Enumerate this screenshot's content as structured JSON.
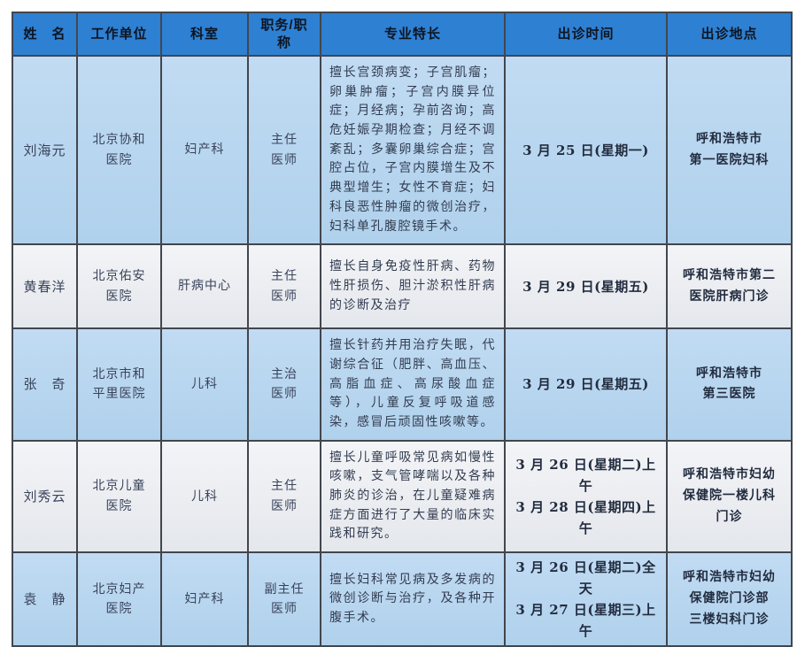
{
  "colors": {
    "header_bg": "#2e80d2",
    "header_text": "#0d1522",
    "body_text": "#39435a",
    "strong_text": "#222c3f",
    "border_color": "#42464d",
    "row_blue_top": "#c1dbf3",
    "row_blue_bottom": "#b0d1ec",
    "row_light_top": "#f3f4f7",
    "row_light_bottom": "#e4e7ec",
    "page_bg": "#ffffff"
  },
  "table": {
    "headers": {
      "name": "姓　名",
      "unit": "工作单位",
      "dept": "科室",
      "title": "职务/职\n称",
      "specialty": "专业特长",
      "time": "出诊时间",
      "location": "出诊地点"
    },
    "rows": [
      {
        "name": "刘海元",
        "unit": "北京协和\n医院",
        "dept": "妇产科",
        "title": "主任\n医师",
        "specialty": "擅长宫颈病变；子宫肌瘤；卵巢肿瘤；子宫内膜异位症；月经病；孕前咨询；高危妊娠孕期检查；月经不调紊乱；多囊卵巢综合症；宫腔占位，子宫内膜增生及不典型增生；女性不育症；妇科良恶性肿瘤的微创治疗，妇科单孔腹腔镜手术。",
        "time": "3 月 25 日(星期一)",
        "location": "呼和浩特市\n第一医院妇科"
      },
      {
        "name": "黄春洋",
        "unit": "北京佑安\n医院",
        "dept": "肝病中心",
        "title": "主任\n医师",
        "specialty": "擅长自身免疫性肝病、药物性肝损伤、胆汁淤积性肝病的诊断及治疗",
        "time": "3 月 29 日(星期五)",
        "location": "呼和浩特市第二\n医院肝病门诊"
      },
      {
        "name": "张　奇",
        "unit": "北京市和\n平里医院",
        "dept": "儿科",
        "title": "主治\n医师",
        "specialty": "擅长针药并用治疗失眠，代谢综合征（肥胖、高血压、高脂血症、高尿酸血症等），儿童反复呼吸道感染，感冒后顽固性咳嗽等。",
        "time": "3 月 29 日(星期五)",
        "location": "呼和浩特市\n第三医院"
      },
      {
        "name": "刘秀云",
        "unit": "北京儿童\n医院",
        "dept": "儿科",
        "title": "主任\n医师",
        "specialty": "擅长儿童呼吸常见病如慢性咳嗽，支气管哮喘以及各种肺炎的诊治，在儿童疑难病症方面进行了大量的临床实践和研究。",
        "time": "3 月 26 日(星期二)上午\n3 月 28 日(星期四)上午",
        "location": "呼和浩特市妇幼\n保健院一楼儿科\n门诊"
      },
      {
        "name": "袁　静",
        "unit": "北京妇产\n医院",
        "dept": "妇产科",
        "title": "副主任\n医师",
        "specialty": "擅长妇科常见病及多发病的微创诊断与治疗，及各种开腹手术。",
        "time": "3 月 26 日(星期二)全天\n3 月 27 日(星期三)上午",
        "location": "呼和浩特市妇幼\n保健院门诊部\n三楼妇科门诊"
      }
    ]
  }
}
